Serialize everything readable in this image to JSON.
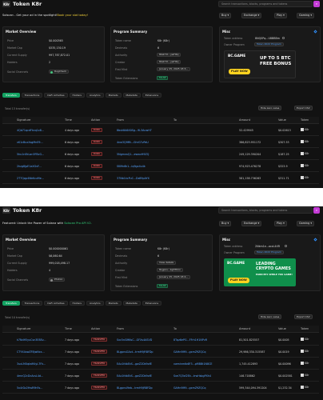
{
  "p1": {
    "title": "Token K8r",
    "search_placeholder": "Search transactions, blocks, programs and tokens",
    "promo": {
      "prefix": "Solscan",
      "middle": " - Get your ad in the spotlight!",
      "link": "Book your slot today!"
    },
    "nav": [
      "Buy",
      "Exchange",
      "Play",
      "Gaming"
    ],
    "market": {
      "title": "Market Overview",
      "price": {
        "label": "Price",
        "value": "$0.000365"
      },
      "market_cap": {
        "label": "Market Cap",
        "value": "$535,130.19"
      },
      "supply": {
        "label": "Current Supply",
        "value": "997,787,872.01"
      },
      "holders": {
        "label": "Holders",
        "value": "2"
      },
      "socials": {
        "label": "Social Channels",
        "value": "RugCheck"
      }
    },
    "program": {
      "title": "Program Summary",
      "token_name": {
        "label": "Token name",
        "value": "K8r (K8r)"
      },
      "decimals": {
        "label": "Decimals",
        "value": "6"
      },
      "authority": {
        "label": "Authority",
        "value": "8bsh7X...ywH4q"
      },
      "creator": {
        "label": "Creator",
        "value": "8bsh7X...ywH4q"
      },
      "first_mint": {
        "label": "First Mint",
        "value": "January 25, 2025 18:3..."
      },
      "extensions": {
        "label": "Token Extensions",
        "value": "FALSE"
      }
    },
    "misc": {
      "title": "Misc",
      "token_address": {
        "label": "Token address",
        "value": "8NQSPq...U8BBBm"
      },
      "owner_program": {
        "label": "Owner Program",
        "value": "Token 2022 Program"
      },
      "ad": {
        "brand": "BC.GAME",
        "line1": "UP TO 5 BTC",
        "line2": "FREE BONUS",
        "button": "PLAY NOW"
      }
    },
    "tabs": [
      "Transfers",
      "Transactions",
      "DeFi Activities",
      "Holders",
      "Analytics",
      "Markets",
      "Metadata",
      "Extensions"
    ],
    "table_meta": {
      "count": "Total 13 transfer(s)",
      "hide_zero": "Hide zero value",
      "export": "Export CSV"
    },
    "headers": [
      "Signature",
      "Time",
      "Action",
      "From",
      "To",
      "Amount",
      "Value",
      "Token"
    ],
    "rows": [
      {
        "sig": "4Qb71qcdFkcq1x8...",
        "time": "4 days ago",
        "action": "BURN",
        "from": "8bsh8A6X0Sg...9L3AuwH7",
        "to": "",
        "amount": "52.429945",
        "value": "$0.02613",
        "token": "K8r"
      },
      {
        "sig": "vK1cBuxXsgMnE9...",
        "time": "6 days ago",
        "action": "BURN",
        "from": "4nw3Q9Mt...GhrG7vPaU",
        "to": "",
        "amount": "386,823.951172",
        "value": "$307.53",
        "token": "K8r"
      },
      {
        "sig": "5hu1nEkLan3FBcG...",
        "time": "6 days ago",
        "action": "BURN",
        "from": "5NgmnsQ1...ewwvH9ZQ",
        "to": "",
        "amount": "249,129.390204",
        "value": "$187.25",
        "token": "K8r"
      },
      {
        "sig": "2hzg8JpE1aXGvF...",
        "time": "6 days ago",
        "action": "BURN",
        "from": "SKMn6k1...iq9gx4u4k",
        "to": "",
        "amount": "974,923.476278",
        "value": "$323.9",
        "token": "K8r"
      },
      {
        "sig": "2T7Qqp4NbKxuMe...",
        "time": "6 days ago",
        "action": "BURN",
        "from": "37Nb1kcPuC...Dz89pAYX",
        "to": "",
        "amount": "581,158.736263",
        "value": "$311.71",
        "token": "K8r"
      }
    ]
  },
  "p2": {
    "title": "Token K8r",
    "search_placeholder": "Search transactions, blocks, programs and tokens",
    "promo": {
      "prefix": "Featured:",
      "middle": " Unlock the Power of Solana with ",
      "link": "Solscan Pro API V2."
    },
    "nav": [
      "Buy",
      "Exchange",
      "Play",
      "Gaming"
    ],
    "market": {
      "title": "Market Overview",
      "price": {
        "label": "Price",
        "value": "$0.000000061"
      },
      "market_cap": {
        "label": "Market Cap",
        "value": "$6,060.64"
      },
      "supply": {
        "label": "Current Supply",
        "value": "999,018,498.17"
      },
      "holders": {
        "label": "Holders",
        "value": "4"
      },
      "socials": {
        "label": "Social Channels",
        "value": "Photon"
      }
    },
    "program": {
      "title": "Program Summary",
      "token_name": {
        "label": "Token name",
        "value": "K8r (K8r)"
      },
      "decimals": {
        "label": "Decimals",
        "value": "6"
      },
      "authority": {
        "label": "Authority",
        "value": "View details"
      },
      "creator": {
        "label": "Creator",
        "value": "8Lgpns...bgHHmx"
      },
      "first_mint": {
        "label": "First Mint",
        "value": "January 25, 2025 18:4..."
      },
      "extensions": {
        "label": "Token Extensions",
        "value": "FALSE"
      }
    },
    "misc": {
      "title": "Misc",
      "token_address": {
        "label": "Token address",
        "value": "2Nkm1e...aczL4XR"
      },
      "owner_program": {
        "label": "Owner Program",
        "value": "Token 2022 Program"
      },
      "ad": {
        "brand": "BC.GAME",
        "line1": "LEADING",
        "line2": "CRYPTO GAMES",
        "line3": "EARN BTC WHILE YOU GAME!",
        "button": "PLAY NOW"
      }
    },
    "tabs": [
      "Transfers",
      "Transactions",
      "DeFi Activities",
      "Holders",
      "Analytics",
      "Markets",
      "Metadata",
      "Extensions"
    ],
    "table_meta": {
      "count": "Total 10 transfer(s)",
      "hide_zero": "Hide zero value",
      "export": "Export CSV"
    },
    "headers": [
      "Signature",
      "Time",
      "Action",
      "From",
      "To",
      "Amount",
      "Value",
      "Token"
    ],
    "rows": [
      {
        "sig": "k7NdH5yuCsn3E8Ev...",
        "time": "7 days ago",
        "action": "TRANSFER",
        "from": "Sxc5nGM6sC...GFXs4ASVD",
        "to": "8Tqz6ePG...FFrh1H1NPvR",
        "amount": "81,501.825557",
        "value": "$0.0005",
        "token": "K8r"
      },
      {
        "sig": "CTYX4awZF8jwNcx...",
        "time": "7 days ago",
        "action": "TRANSFER",
        "from": "8LgpnsGAxt...trmH9jRBFDp",
        "to": "GAHn9M9...gxmZ9ZQCq",
        "amount": "29,986,330.315587",
        "value": "$0.0019",
        "token": "K8r"
      },
      {
        "sig": "3uxLMXqtaM4yL7Fk...",
        "time": "7 days ago",
        "action": "TRANSFER",
        "from": "EAx1fdbEkS...gwZ2Dk9ofE",
        "to": "vwminmtb6F3...pMBBt1N8CE",
        "amount": "1,745.412893",
        "value": "$0.00096",
        "token": "K8r"
      },
      {
        "sig": "4mnQ2cDcAcsL4d...",
        "time": "7 days ago",
        "action": "TRANSFER",
        "from": "EAx1fdbEkS...gwZ2Dk9ofE",
        "to": "Sxe7Q3sf2Ek...trwHsbgPXh4",
        "amount": "146.718862",
        "value": "$0.002581",
        "token": "K8r"
      },
      {
        "sig": "5x4rDz2HwR9hFo...",
        "time": "7 days ago",
        "action": "TRANSFER",
        "from": "8Lgpnsl9eb...trmH9jRBFDp",
        "to": "GAHn9M9...gxmZ9ZQCq",
        "amount": "599,344,094.391204",
        "value": "$1,232.34",
        "token": "K8r"
      }
    ]
  }
}
